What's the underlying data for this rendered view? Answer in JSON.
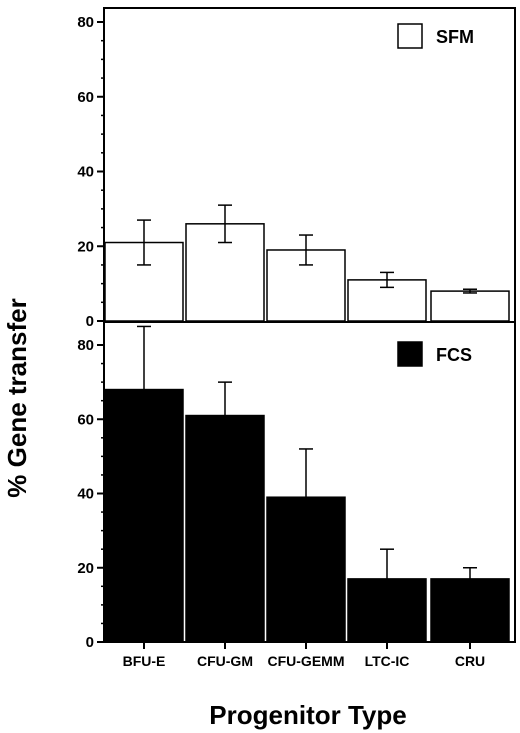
{
  "chart_data": [
    {
      "type": "bar",
      "panel": "top",
      "categories": [
        "BFU-E",
        "CFU-GM",
        "CFU-GEMM",
        "LTC-IC",
        "CRU"
      ],
      "series": [
        {
          "name": "SFM",
          "color": "#ffffff",
          "values": [
            21,
            26,
            19,
            11,
            8
          ],
          "errors": [
            6,
            5,
            4,
            2,
            0.5
          ]
        }
      ],
      "ylim": [
        0,
        80
      ],
      "yticks": [
        "0",
        "20",
        "40",
        "60",
        "80"
      ],
      "legend_position": "top-right"
    },
    {
      "type": "bar",
      "panel": "bottom",
      "categories": [
        "BFU-E",
        "CFU-GM",
        "CFU-GEMM",
        "LTC-IC",
        "CRU"
      ],
      "series": [
        {
          "name": "FCS",
          "color": "#000000",
          "values": [
            68,
            61,
            39,
            17,
            17
          ],
          "errors": [
            17,
            9,
            13,
            8,
            3
          ]
        }
      ],
      "ylim": [
        0,
        80
      ],
      "yticks": [
        "0",
        "20",
        "40",
        "60",
        "80"
      ],
      "legend_position": "top-right"
    }
  ],
  "ylabel": "% Gene transfer",
  "xlabel": "Progenitor Type",
  "categories": [
    "BFU-E",
    "CFU-GM",
    "CFU-GEMM",
    "LTC-IC",
    "CRU"
  ]
}
